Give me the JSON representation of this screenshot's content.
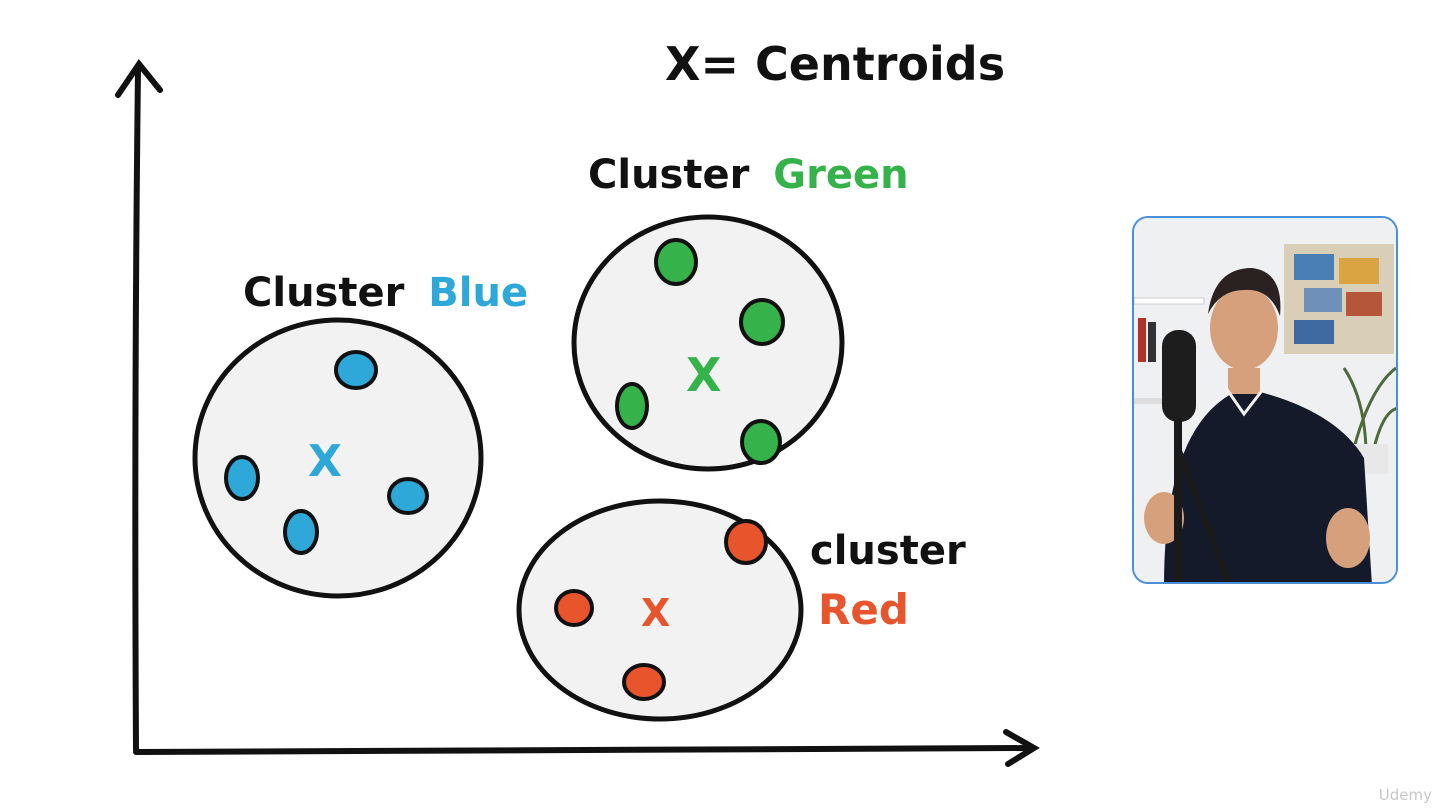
{
  "title": "X= Centroids",
  "clusters": [
    {
      "label_prefix": "Cluster",
      "label_color_word": "Blue",
      "color": "#2ea8d8",
      "centroid_mark": "X"
    },
    {
      "label_prefix": "Cluster",
      "label_color_word": "Green",
      "color": "#35b34a",
      "centroid_mark": "X"
    },
    {
      "label_prefix": "cluster",
      "label_color_word": "Red",
      "color": "#e8542c",
      "centroid_mark": "X"
    }
  ],
  "watermark": "Udemy",
  "colors": {
    "ink": "#111111",
    "cluster_fill": "#f2f2f2",
    "webcam_border": "#4a90d9"
  }
}
